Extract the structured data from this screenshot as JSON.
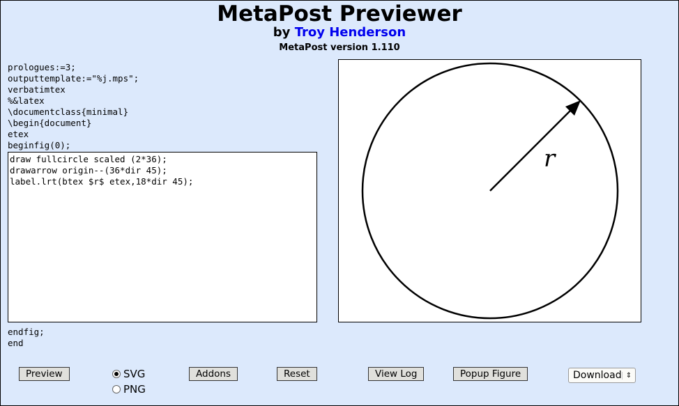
{
  "header": {
    "title": "MetaPost Previewer",
    "by_prefix": "by",
    "author": "Troy Henderson",
    "version": "MetaPost version 1.110"
  },
  "code_pre": "prologues:=3;\noutputtemplate:=\"%j.mps\";\nverbatimtex\n%&latex\n\\documentclass{minimal}\n\\begin{document}\netex\nbeginfig(0);",
  "editor_value": "draw fullcircle scaled (2*36);\ndrawarrow origin--(36*dir 45);\nlabel.lrt(btex $r$ etex,18*dir 45);",
  "code_post": "endfig;\nend",
  "preview": {
    "label": "r"
  },
  "buttons": {
    "preview": "Preview",
    "addons": "Addons",
    "reset": "Reset",
    "view_log": "View Log",
    "popup": "Popup Figure"
  },
  "format": {
    "options": [
      "SVG",
      "PNG"
    ],
    "selected": "SVG"
  },
  "download": {
    "selected": "Download"
  },
  "colors": {
    "background": "#dce9fc",
    "link": "#0000ee"
  }
}
